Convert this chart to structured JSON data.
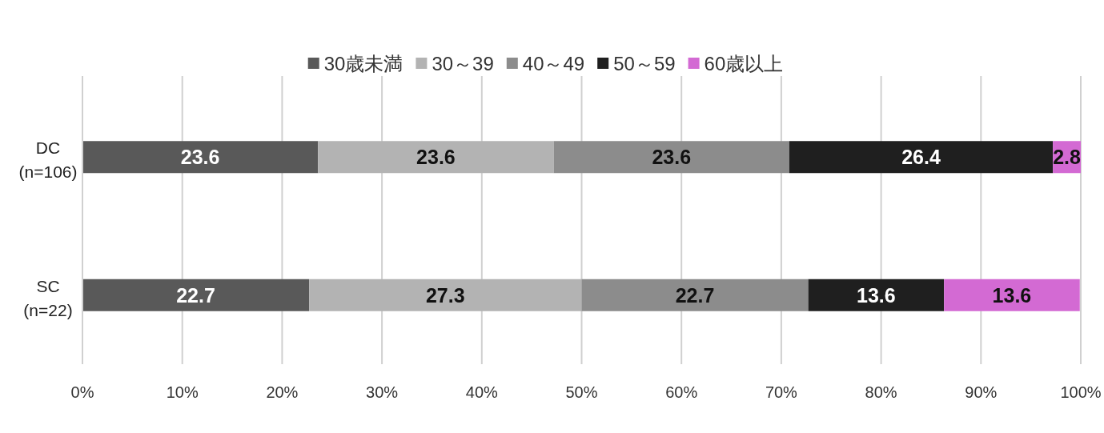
{
  "chart_data": {
    "type": "bar",
    "orientation": "horizontal",
    "stacked": true,
    "categories": [
      "DC\n(n=106)",
      "SC\n(n=22)"
    ],
    "series": [
      {
        "name": "30歳未満",
        "color": "#595959",
        "values": [
          23.6,
          22.7
        ]
      },
      {
        "name": "30～39",
        "color": "#b3b3b3",
        "values": [
          23.6,
          27.3
        ]
      },
      {
        "name": "40～49",
        "color": "#8c8c8c",
        "values": [
          23.6,
          22.7
        ]
      },
      {
        "name": "50～59",
        "color": "#1f1f1f",
        "values": [
          26.4,
          13.6
        ]
      },
      {
        "name": "60歳以上",
        "color": "#d36ad3",
        "values": [
          2.8,
          13.6
        ]
      }
    ],
    "xlim": [
      0,
      100
    ],
    "xticks": [
      {
        "value": 0,
        "label": "0%"
      },
      {
        "value": 10,
        "label": "10%"
      },
      {
        "value": 20,
        "label": "20%"
      },
      {
        "value": 30,
        "label": "30%"
      },
      {
        "value": 40,
        "label": "40%"
      },
      {
        "value": 50,
        "label": "50%"
      },
      {
        "value": 60,
        "label": "60%"
      },
      {
        "value": 70,
        "label": "70%"
      },
      {
        "value": 80,
        "label": "80%"
      },
      {
        "value": 90,
        "label": "90%"
      },
      {
        "value": 100,
        "label": "100%"
      }
    ],
    "grid": "x",
    "legend": "top",
    "data_labels": true
  }
}
